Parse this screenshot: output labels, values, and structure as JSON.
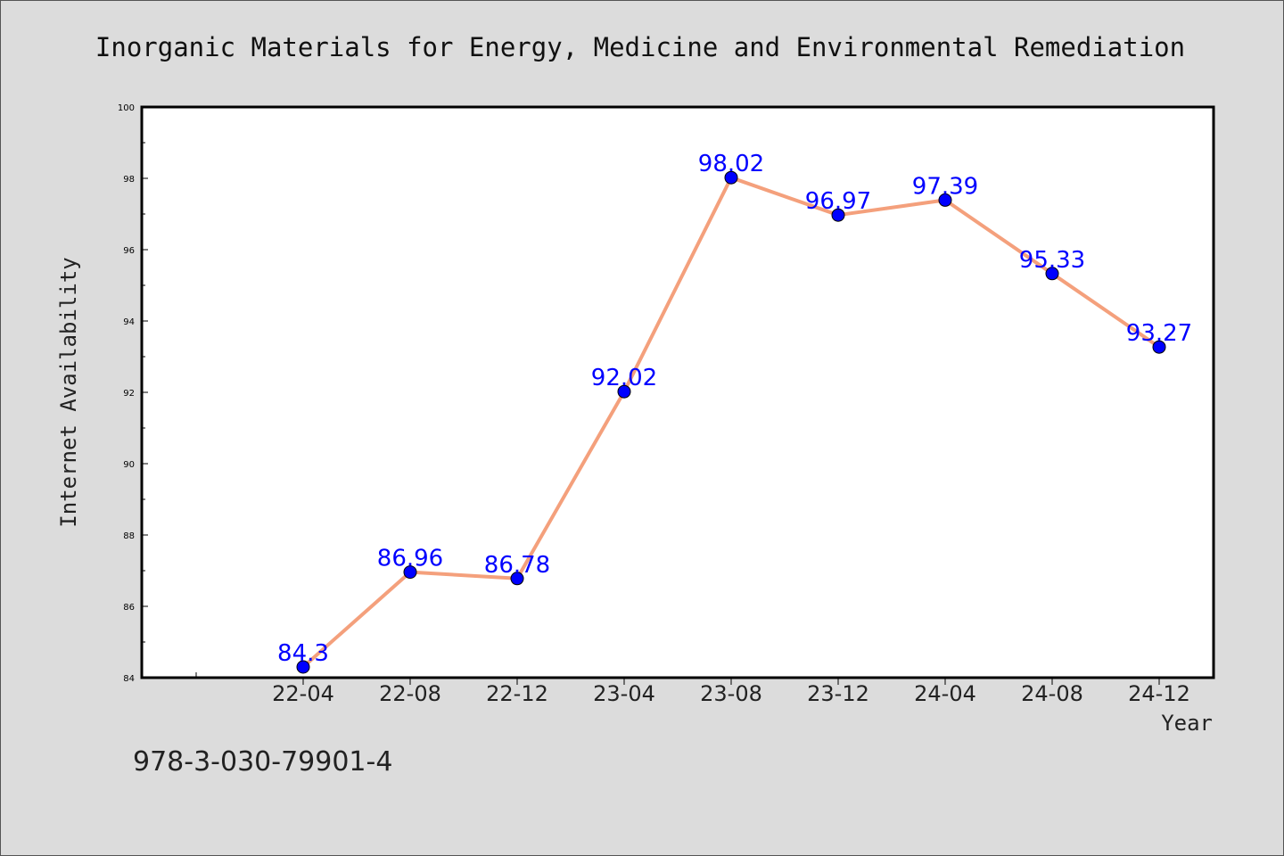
{
  "chart_data": {
    "type": "line",
    "title": "Inorganic Materials for Energy, Medicine and Environmental Remediation",
    "xlabel": "Year",
    "ylabel": "Internet Availability",
    "categories": [
      "22-04",
      "22-08",
      "22-12",
      "23-04",
      "23-08",
      "23-12",
      "24-04",
      "24-08",
      "24-12"
    ],
    "series": [
      {
        "values": [
          84.3,
          86.96,
          86.78,
          92.02,
          98.02,
          96.97,
          97.39,
          95.33,
          93.27
        ],
        "labels": [
          "84.3",
          "86.96",
          "86.78",
          "92.02",
          "98.02",
          "96.97",
          "97.39",
          "95.33",
          "93.27"
        ]
      }
    ],
    "ylim": [
      84,
      100
    ],
    "yticks": [
      "84",
      "86",
      "88",
      "90",
      "92",
      "94",
      "96",
      "98",
      "100"
    ],
    "grid": false,
    "legend": false,
    "colors": {
      "line": "#f4a07c",
      "marker": "#0000ff",
      "label": "#0000ff"
    }
  },
  "footnote": "978-3-030-79901-4"
}
